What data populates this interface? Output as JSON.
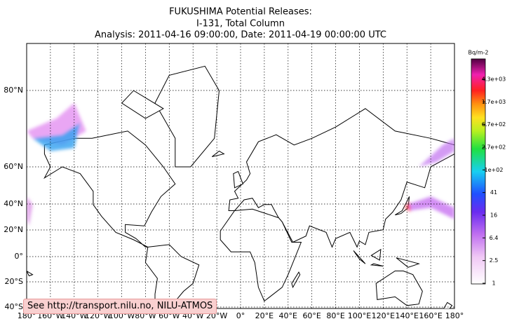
{
  "title": [
    "FUKUSHIMA Potential Releases:",
    "I-131, Total Column",
    "Analysis: 2011-04-16  09:00:00, Date: 2011-04-19  00:00:00 UTC"
  ],
  "lat_labels": [
    "80°N",
    "60°N",
    "40°N",
    "20°N",
    "0°",
    "20°S",
    "40°S"
  ],
  "lon_labels": [
    "180°",
    "160°W",
    "140°W",
    "120°W",
    "100°W",
    "80°W",
    "60°W",
    "40°W",
    "20°W",
    "0°",
    "20°E",
    "40°E",
    "60°E",
    "80°E",
    "100°E",
    "120°E",
    "140°E",
    "160°E",
    "180°"
  ],
  "colorbar": {
    "unit": "Bq/m-2",
    "labels": [
      "4.3e+03",
      "1.7e+03",
      "6.7e+02",
      "2.7e+02",
      "1e+02",
      "41",
      "16",
      "6.4",
      "2.5",
      "1"
    ]
  },
  "footer": "See http://transport.nilu.no, NILU-ATMOS"
}
